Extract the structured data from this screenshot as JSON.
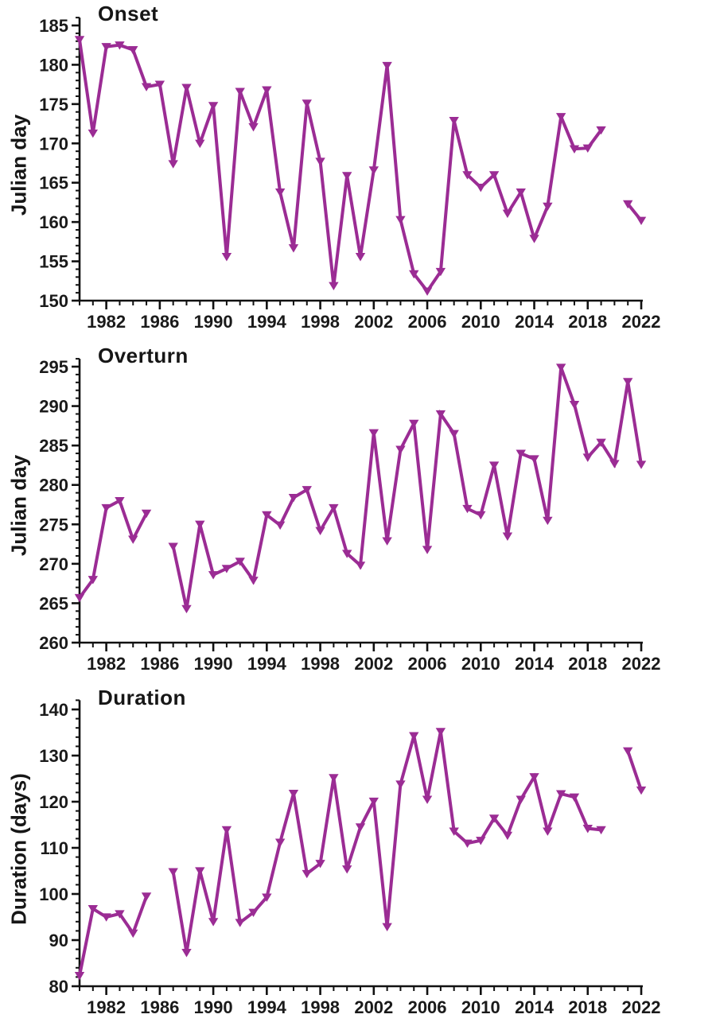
{
  "figure": {
    "background": "#ffffff",
    "n_charts": 3
  },
  "style": {
    "line_color": "#9B2C94",
    "axis_color": "#111111",
    "tick_label_color": "#1a1a1a",
    "marker": "triangle-down",
    "grid": "off",
    "legend": "none"
  },
  "chart_data": [
    {
      "type": "line",
      "title": "Onset",
      "ylabel": "Julian day",
      "xlabel": "",
      "ylim": [
        150,
        185
      ],
      "yticks": [
        150,
        155,
        160,
        165,
        170,
        175,
        180,
        185
      ],
      "y_minor_step": 1,
      "xticks": [
        1982,
        1986,
        1990,
        1994,
        1998,
        2002,
        2006,
        2010,
        2014,
        2018,
        2022
      ],
      "x_minor_step": 1,
      "marker": "triangle-down",
      "x_years": [
        1980,
        1981,
        1982,
        1983,
        1984,
        1985,
        1986,
        1987,
        1988,
        1989,
        1990,
        1991,
        1992,
        1993,
        1994,
        1995,
        1996,
        1997,
        1998,
        1999,
        2000,
        2001,
        2002,
        2003,
        2004,
        2005,
        2006,
        2007,
        2008,
        2009,
        2010,
        2011,
        2012,
        2013,
        2014,
        2015,
        2016,
        2017,
        2018,
        2019,
        2020,
        2021,
        2022
      ],
      "values": [
        183.2,
        171.3,
        182.3,
        182.5,
        181.9,
        177.2,
        177.5,
        167.4,
        177.1,
        170.0,
        174.8,
        155.6,
        176.6,
        172.1,
        176.8,
        163.8,
        156.7,
        175.1,
        167.7,
        151.9,
        165.9,
        155.6,
        166.6,
        179.9,
        160.3,
        153.4,
        151.2,
        153.7,
        172.9,
        166.0,
        164.4,
        166.0,
        161.1,
        163.8,
        157.9,
        162.0,
        173.4,
        169.3,
        169.4,
        171.7,
        null,
        162.3,
        160.2
      ]
    },
    {
      "type": "line",
      "title": "Overturn",
      "ylabel": "Julian day",
      "xlabel": "",
      "ylim": [
        260,
        295
      ],
      "yticks": [
        260,
        265,
        270,
        275,
        280,
        285,
        290,
        295
      ],
      "y_minor_step": 1,
      "xticks": [
        1982,
        1986,
        1990,
        1994,
        1998,
        2002,
        2006,
        2010,
        2014,
        2018,
        2022
      ],
      "x_minor_step": 1,
      "marker": "triangle-down",
      "x_years": [
        1980,
        1981,
        1982,
        1983,
        1984,
        1985,
        1986,
        1987,
        1988,
        1989,
        1990,
        1991,
        1992,
        1993,
        1994,
        1995,
        1996,
        1997,
        1998,
        1999,
        2000,
        2001,
        2002,
        2003,
        2004,
        2005,
        2006,
        2007,
        2008,
        2009,
        2010,
        2011,
        2012,
        2013,
        2014,
        2015,
        2016,
        2017,
        2018,
        2019,
        2020,
        2021,
        2022
      ],
      "values": [
        265.7,
        268.0,
        277.1,
        278.0,
        273.1,
        276.4,
        null,
        272.2,
        264.3,
        275.0,
        268.6,
        269.4,
        270.3,
        267.9,
        276.2,
        274.9,
        278.4,
        279.4,
        274.2,
        277.1,
        271.3,
        269.8,
        286.6,
        272.9,
        284.5,
        287.8,
        271.8,
        289.0,
        286.5,
        277.0,
        276.2,
        282.5,
        273.5,
        284.0,
        283.3,
        275.5,
        294.9,
        290.2,
        283.5,
        285.4,
        282.7,
        293.1,
        282.6
      ]
    },
    {
      "type": "line",
      "title": "Duration",
      "ylabel": "Duration (days)",
      "xlabel": "",
      "ylim": [
        80,
        140
      ],
      "yticks": [
        80,
        90,
        100,
        110,
        120,
        130,
        140
      ],
      "y_minor_step": 2,
      "xticks": [
        1982,
        1986,
        1990,
        1994,
        1998,
        2002,
        2006,
        2010,
        2014,
        2018,
        2022
      ],
      "x_minor_step": 1,
      "marker": "triangle-down",
      "x_years": [
        1980,
        1981,
        1982,
        1983,
        1984,
        1985,
        1986,
        1987,
        1988,
        1989,
        1990,
        1991,
        1992,
        1993,
        1994,
        1995,
        1996,
        1997,
        1998,
        1999,
        2000,
        2001,
        2002,
        2003,
        2004,
        2005,
        2006,
        2007,
        2008,
        2009,
        2010,
        2011,
        2012,
        2013,
        2014,
        2015,
        2016,
        2017,
        2018,
        2019,
        2020,
        2021,
        2022
      ],
      "values": [
        82.3,
        96.8,
        95.0,
        95.7,
        91.5,
        99.5,
        null,
        104.8,
        87.3,
        105.0,
        94.0,
        113.9,
        93.8,
        96.0,
        99.3,
        111.2,
        121.8,
        104.4,
        106.6,
        125.2,
        105.4,
        114.5,
        120.1,
        92.9,
        123.8,
        134.3,
        120.5,
        135.2,
        113.6,
        111.0,
        111.6,
        116.4,
        112.7,
        120.5,
        125.4,
        113.6,
        121.7,
        121.0,
        114.2,
        113.9,
        null,
        131.0,
        122.5
      ]
    }
  ]
}
